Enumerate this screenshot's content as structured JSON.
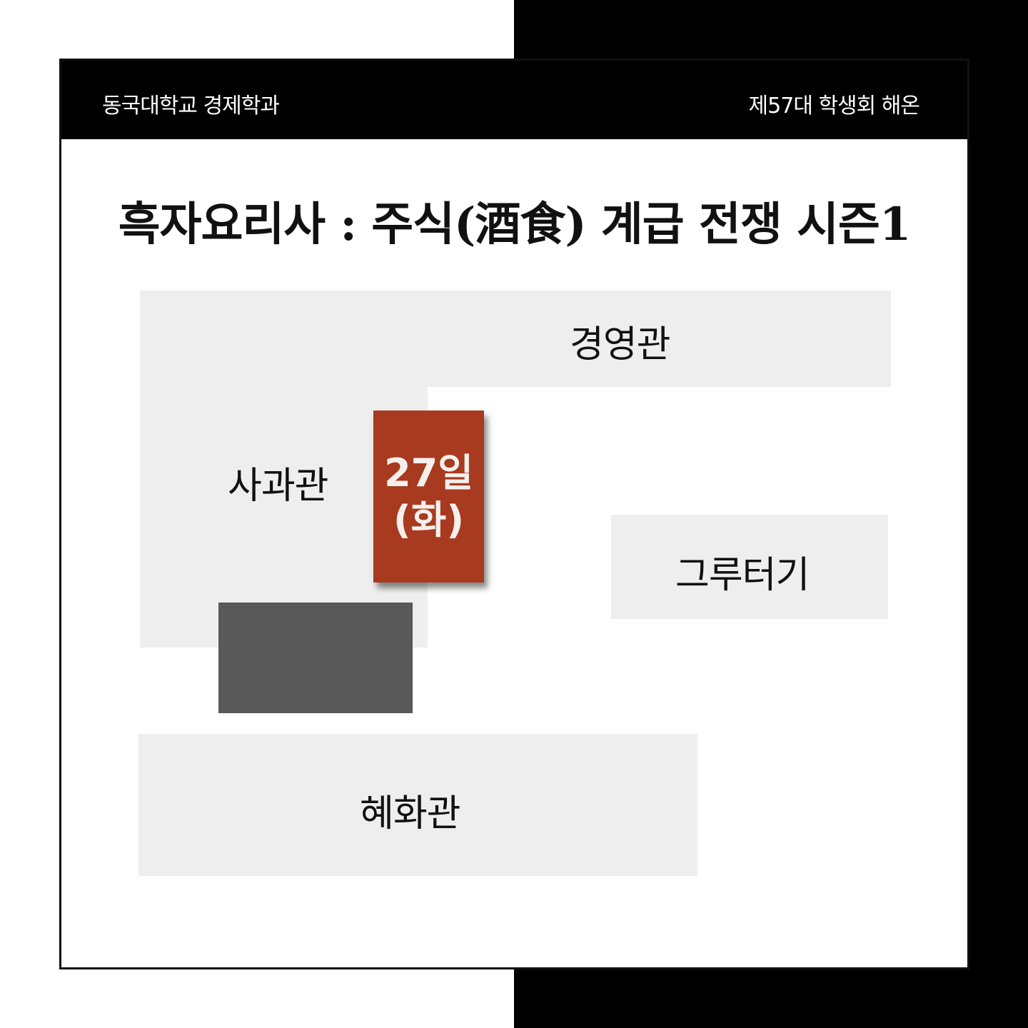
{
  "header": {
    "left": "동국대학교 경제학과",
    "right": "제57대 학생회 해온"
  },
  "title": "흑자요리사 : 주식(酒食) 계급 전쟁 시즌1",
  "map": {
    "buildings": {
      "gyeongyeong": "경영관",
      "sagwan": "사과관",
      "geuruteogi": "그루터기",
      "hyehwa": "혜화관"
    },
    "event": {
      "date": "27일",
      "day": "(화)"
    }
  },
  "colors": {
    "header_bg": "#000000",
    "building_fill": "#eeeeee",
    "event_fill": "#a83a20",
    "dark_block": "#595959"
  }
}
